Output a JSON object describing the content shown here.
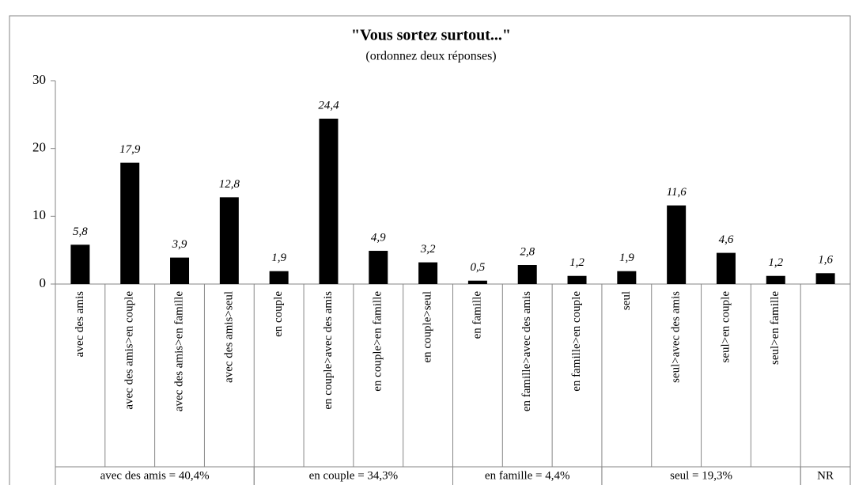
{
  "chart_data": {
    "type": "bar",
    "title": "\"Vous sortez surtout...\"",
    "subtitle": "(ordonnez deux réponses)",
    "categories": [
      "avec des amis",
      "avec des amis>en couple",
      "avec des amis>en famille",
      "avec des amis>seul",
      "en couple",
      "en couple>avec des amis",
      "en couple>en famille",
      "en couple>seul",
      "en famille",
      "en famille>avec des amis",
      "en famille>en couple",
      "seul",
      "seul>avec des amis",
      "seul>en couple",
      "seul>en famille",
      null
    ],
    "values": [
      5.8,
      17.9,
      3.9,
      12.8,
      1.9,
      24.4,
      4.9,
      3.2,
      0.5,
      2.8,
      1.2,
      1.9,
      11.6,
      4.6,
      1.2,
      1.6
    ],
    "value_labels": [
      "5,8",
      "17,9",
      "3,9",
      "12,8",
      "1,9",
      "24,4",
      "4,9",
      "3,2",
      "0,5",
      "2,8",
      "1,2",
      "1,9",
      "11,6",
      "4,6",
      "1,2",
      "1,6"
    ],
    "groups": [
      "avec des amis = 40,4%",
      "en couple = 34,3%",
      "en famille = 4,4%",
      "seul = 19,3%",
      "NR"
    ],
    "color": "#000000",
    "ylim": [
      0,
      30
    ],
    "yticks": [
      0,
      10,
      20,
      30
    ],
    "grid": false
  }
}
